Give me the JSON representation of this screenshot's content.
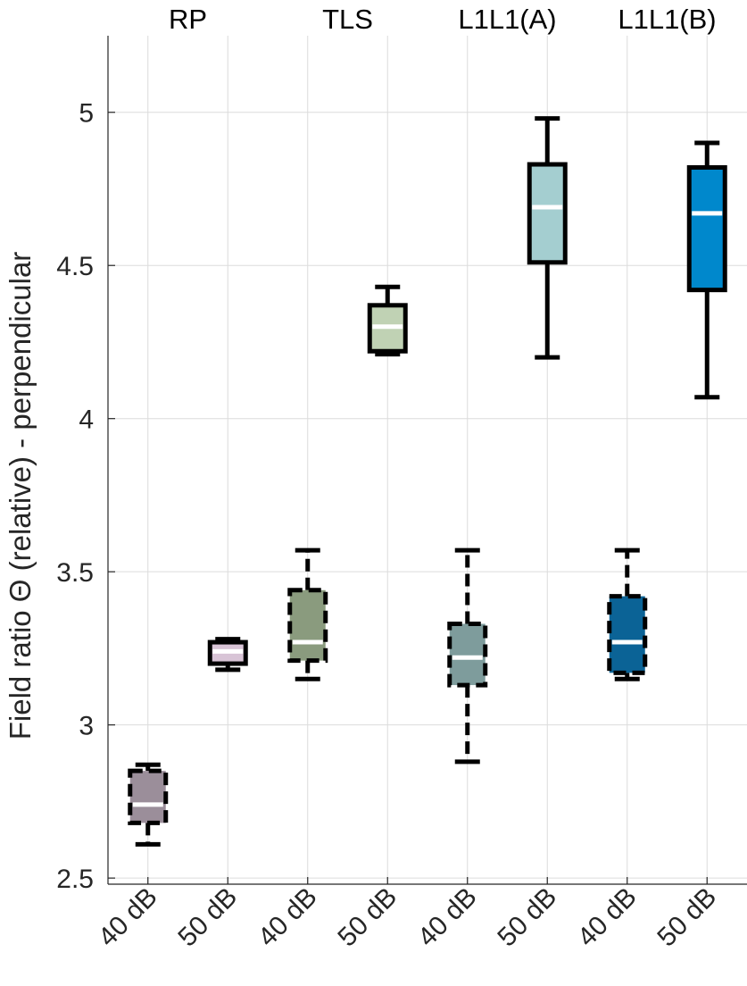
{
  "chart_data": {
    "type": "box",
    "ylabel": "Field ratio Θ (relative) - perpendicular",
    "ylim": [
      2.48,
      5.25
    ],
    "yticks": [
      2.5,
      3,
      3.5,
      4,
      4.5,
      5
    ],
    "ytick_labels": [
      "2.5",
      "3",
      "3.5",
      "4",
      "4.5",
      "5"
    ],
    "grid": true,
    "groups": [
      "RP",
      "TLS",
      "L1L1(A)",
      "L1L1(B)"
    ],
    "categories": [
      "40 dB",
      "50 dB",
      "40 dB",
      "50 dB",
      "40 dB",
      "50 dB",
      "40 dB",
      "50 dB"
    ],
    "boxes": [
      {
        "group": "RP",
        "level": "40 dB",
        "whisker_low": 2.61,
        "q1": 2.68,
        "median": 2.74,
        "q3": 2.85,
        "whisker_high": 2.87,
        "fill": "#9b8e9a",
        "line_style": "dashed"
      },
      {
        "group": "RP",
        "level": "50 dB",
        "whisker_low": 3.18,
        "q1": 3.2,
        "median": 3.24,
        "q3": 3.27,
        "whisker_high": 3.28,
        "fill": "#d8c4d6",
        "line_style": "solid"
      },
      {
        "group": "TLS",
        "level": "40 dB",
        "whisker_low": 3.15,
        "q1": 3.21,
        "median": 3.27,
        "q3": 3.44,
        "whisker_high": 3.57,
        "fill": "#8a9b7e",
        "line_style": "dashed"
      },
      {
        "group": "TLS",
        "level": "50 dB",
        "whisker_low": 4.21,
        "q1": 4.22,
        "median": 4.3,
        "q3": 4.37,
        "whisker_high": 4.43,
        "fill": "#c0d2b4",
        "line_style": "solid"
      },
      {
        "group": "L1L1(A)",
        "level": "40 dB",
        "whisker_low": 2.88,
        "q1": 3.13,
        "median": 3.22,
        "q3": 3.33,
        "whisker_high": 3.57,
        "fill": "#7e9c9c",
        "line_style": "dashed"
      },
      {
        "group": "L1L1(A)",
        "level": "50 dB",
        "whisker_low": 4.2,
        "q1": 4.51,
        "median": 4.69,
        "q3": 4.83,
        "whisker_high": 4.98,
        "fill": "#a4ced0",
        "line_style": "solid"
      },
      {
        "group": "L1L1(B)",
        "level": "40 dB",
        "whisker_low": 3.15,
        "q1": 3.17,
        "median": 3.27,
        "q3": 3.42,
        "whisker_high": 3.57,
        "fill": "#0b6396",
        "line_style": "dashed"
      },
      {
        "group": "L1L1(B)",
        "level": "50 dB",
        "whisker_low": 4.07,
        "q1": 4.42,
        "median": 4.67,
        "q3": 4.82,
        "whisker_high": 4.9,
        "fill": "#0088cc",
        "line_style": "solid"
      }
    ]
  }
}
